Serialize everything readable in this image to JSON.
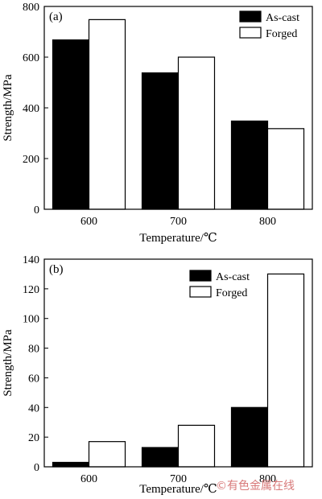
{
  "chart_data": [
    {
      "type": "bar",
      "panel_label": "(a)",
      "categories": [
        "600",
        "700",
        "800"
      ],
      "series": [
        {
          "name": "As-cast",
          "values": [
            668,
            538,
            348
          ],
          "color": "#000000"
        },
        {
          "name": "Forged",
          "values": [
            748,
            600,
            318
          ],
          "color": "#ffffff"
        }
      ],
      "xlabel": "Temperature/℃",
      "ylabel": "Strength/MPa",
      "ylim": [
        0,
        800
      ],
      "yticks": [
        "0",
        "200",
        "400",
        "600",
        "800"
      ],
      "legend_position": "top-right",
      "grid": false
    },
    {
      "type": "bar",
      "panel_label": "(b)",
      "categories": [
        "600",
        "700",
        "800"
      ],
      "series": [
        {
          "name": "As-cast",
          "values": [
            3,
            13,
            40
          ],
          "color": "#000000"
        },
        {
          "name": "Forged",
          "values": [
            17,
            28,
            130
          ],
          "color": "#ffffff"
        }
      ],
      "xlabel": "Temperature/℃",
      "ylabel": "Strength/MPa",
      "ylim": [
        0,
        140
      ],
      "yticks": [
        "0",
        "20",
        "40",
        "60",
        "80",
        "100",
        "120",
        "140"
      ],
      "legend_position": "top-left",
      "grid": false
    }
  ],
  "watermark": "©有色金属在线"
}
